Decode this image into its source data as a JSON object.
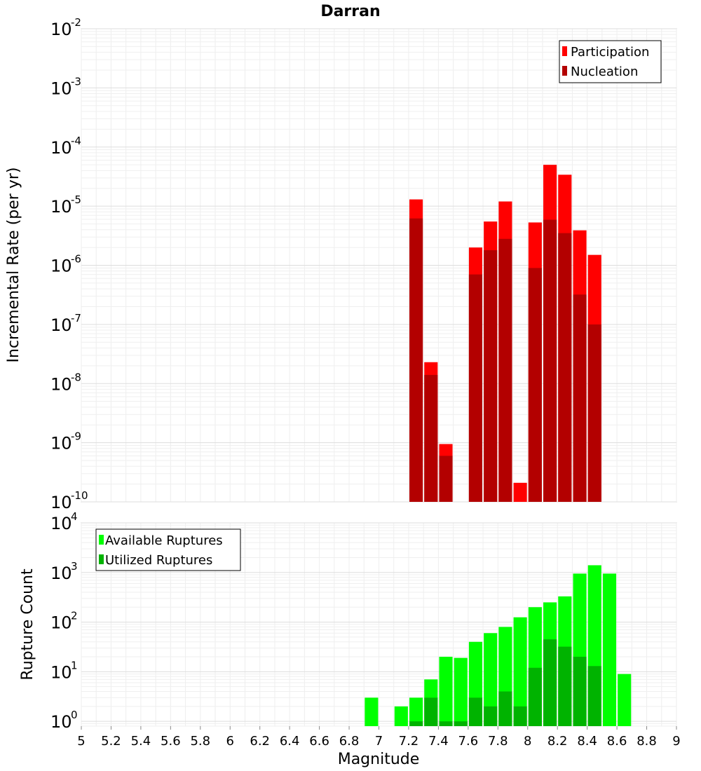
{
  "chart_data": [
    {
      "type": "bar",
      "title": "Darran",
      "xlabel": "",
      "ylabel": "Incremental Rate (per yr)",
      "y_scale": "log",
      "ylim": [
        1e-10,
        0.01
      ],
      "y_tick_exponents": [
        -2,
        -3,
        -4,
        -5,
        -6,
        -7,
        -8,
        -9,
        -10
      ],
      "xlim": [
        5,
        9
      ],
      "grid": true,
      "legend_position": "top-right",
      "overlay": true,
      "series": [
        {
          "name": "Participation",
          "color": "#ff0000",
          "x": [
            7.25,
            7.35,
            7.45,
            7.65,
            7.75,
            7.85,
            7.95,
            8.05,
            8.15,
            8.25,
            8.35,
            8.45
          ],
          "values": [
            1.3e-05,
            2.3e-08,
            9.5e-10,
            2e-06,
            5.5e-06,
            1.2e-05,
            2.1e-10,
            5.3e-06,
            5e-05,
            3.4e-05,
            3.9e-06,
            1.5e-06
          ]
        },
        {
          "name": "Nucleation",
          "color": "#b30000",
          "x": [
            7.25,
            7.35,
            7.45,
            7.65,
            7.75,
            7.85,
            8.05,
            8.15,
            8.25,
            8.35,
            8.45
          ],
          "values": [
            6.2e-06,
            1.4e-08,
            6e-10,
            7e-07,
            1.8e-06,
            2.8e-06,
            9e-07,
            5.9e-06,
            3.5e-06,
            3.2e-07,
            1e-07
          ]
        }
      ]
    },
    {
      "type": "bar",
      "title": "",
      "xlabel": "Magnitude",
      "ylabel": "Rupture Count",
      "y_scale": "log",
      "ylim": [
        0.8,
        10000
      ],
      "y_tick_exponents": [
        0,
        1,
        2,
        3,
        4
      ],
      "xlim": [
        5,
        9
      ],
      "x_ticks": [
        "5",
        "5.2",
        "5.4",
        "5.6",
        "5.8",
        "6",
        "6.2",
        "6.4",
        "6.6",
        "6.8",
        "7",
        "7.2",
        "7.4",
        "7.6",
        "7.8",
        "8",
        "8.2",
        "8.4",
        "8.6",
        "8.8",
        "9"
      ],
      "grid": true,
      "legend_position": "top-left",
      "overlay": true,
      "series": [
        {
          "name": "Available Ruptures",
          "color": "#00ff00",
          "x": [
            6.95,
            7.15,
            7.25,
            7.35,
            7.45,
            7.55,
            7.65,
            7.75,
            7.85,
            7.95,
            8.05,
            8.15,
            8.25,
            8.35,
            8.45,
            8.55,
            8.65
          ],
          "values": [
            3,
            2,
            3,
            7,
            20,
            19,
            40,
            60,
            80,
            125,
            200,
            250,
            330,
            950,
            1400,
            950,
            9
          ]
        },
        {
          "name": "Utilized Ruptures",
          "color": "#00b300",
          "x": [
            7.25,
            7.35,
            7.45,
            7.55,
            7.65,
            7.75,
            7.85,
            7.95,
            8.05,
            8.15,
            8.25,
            8.35,
            8.45
          ],
          "values": [
            1,
            3,
            1,
            1,
            3,
            2,
            4,
            2,
            12,
            45,
            32,
            20,
            13
          ]
        }
      ]
    }
  ]
}
